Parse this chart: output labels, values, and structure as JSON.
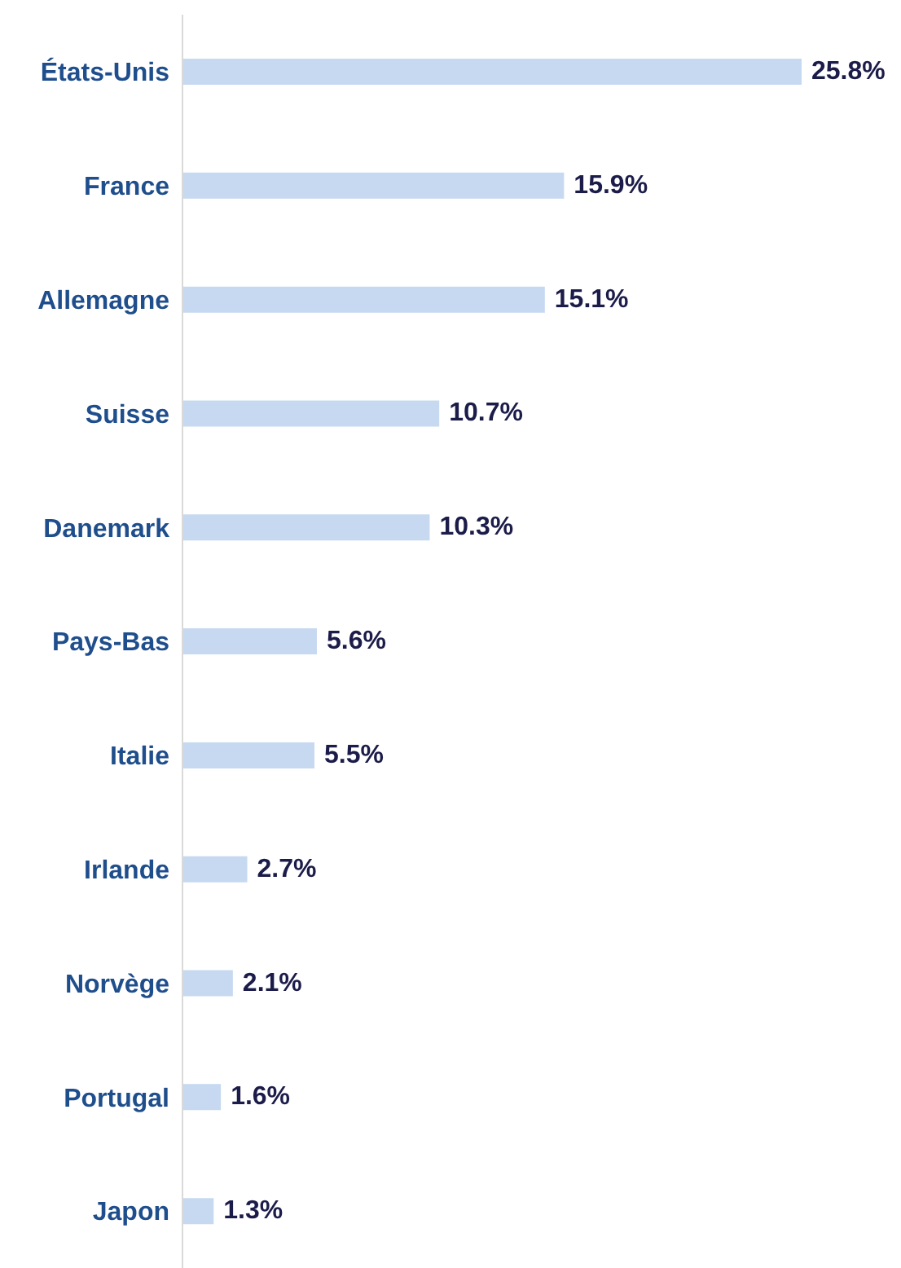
{
  "chart_data": {
    "type": "bar",
    "orientation": "horizontal",
    "categories": [
      "États-Unis",
      "France",
      "Allemagne",
      "Suisse",
      "Danemark",
      "Pays-Bas",
      "Italie",
      "Irlande",
      "Norvège",
      "Portugal",
      "Japon"
    ],
    "values": [
      25.8,
      15.9,
      15.1,
      10.7,
      10.3,
      5.6,
      5.5,
      2.7,
      2.1,
      1.6,
      1.3
    ],
    "value_labels": [
      "25.8%",
      "15.9%",
      "15.1%",
      "10.7%",
      "10.3%",
      "5.6%",
      "5.5%",
      "2.7%",
      "2.1%",
      "1.6%",
      "1.3%"
    ],
    "color": "#c6d9f1",
    "tick_labels": "y"
  }
}
